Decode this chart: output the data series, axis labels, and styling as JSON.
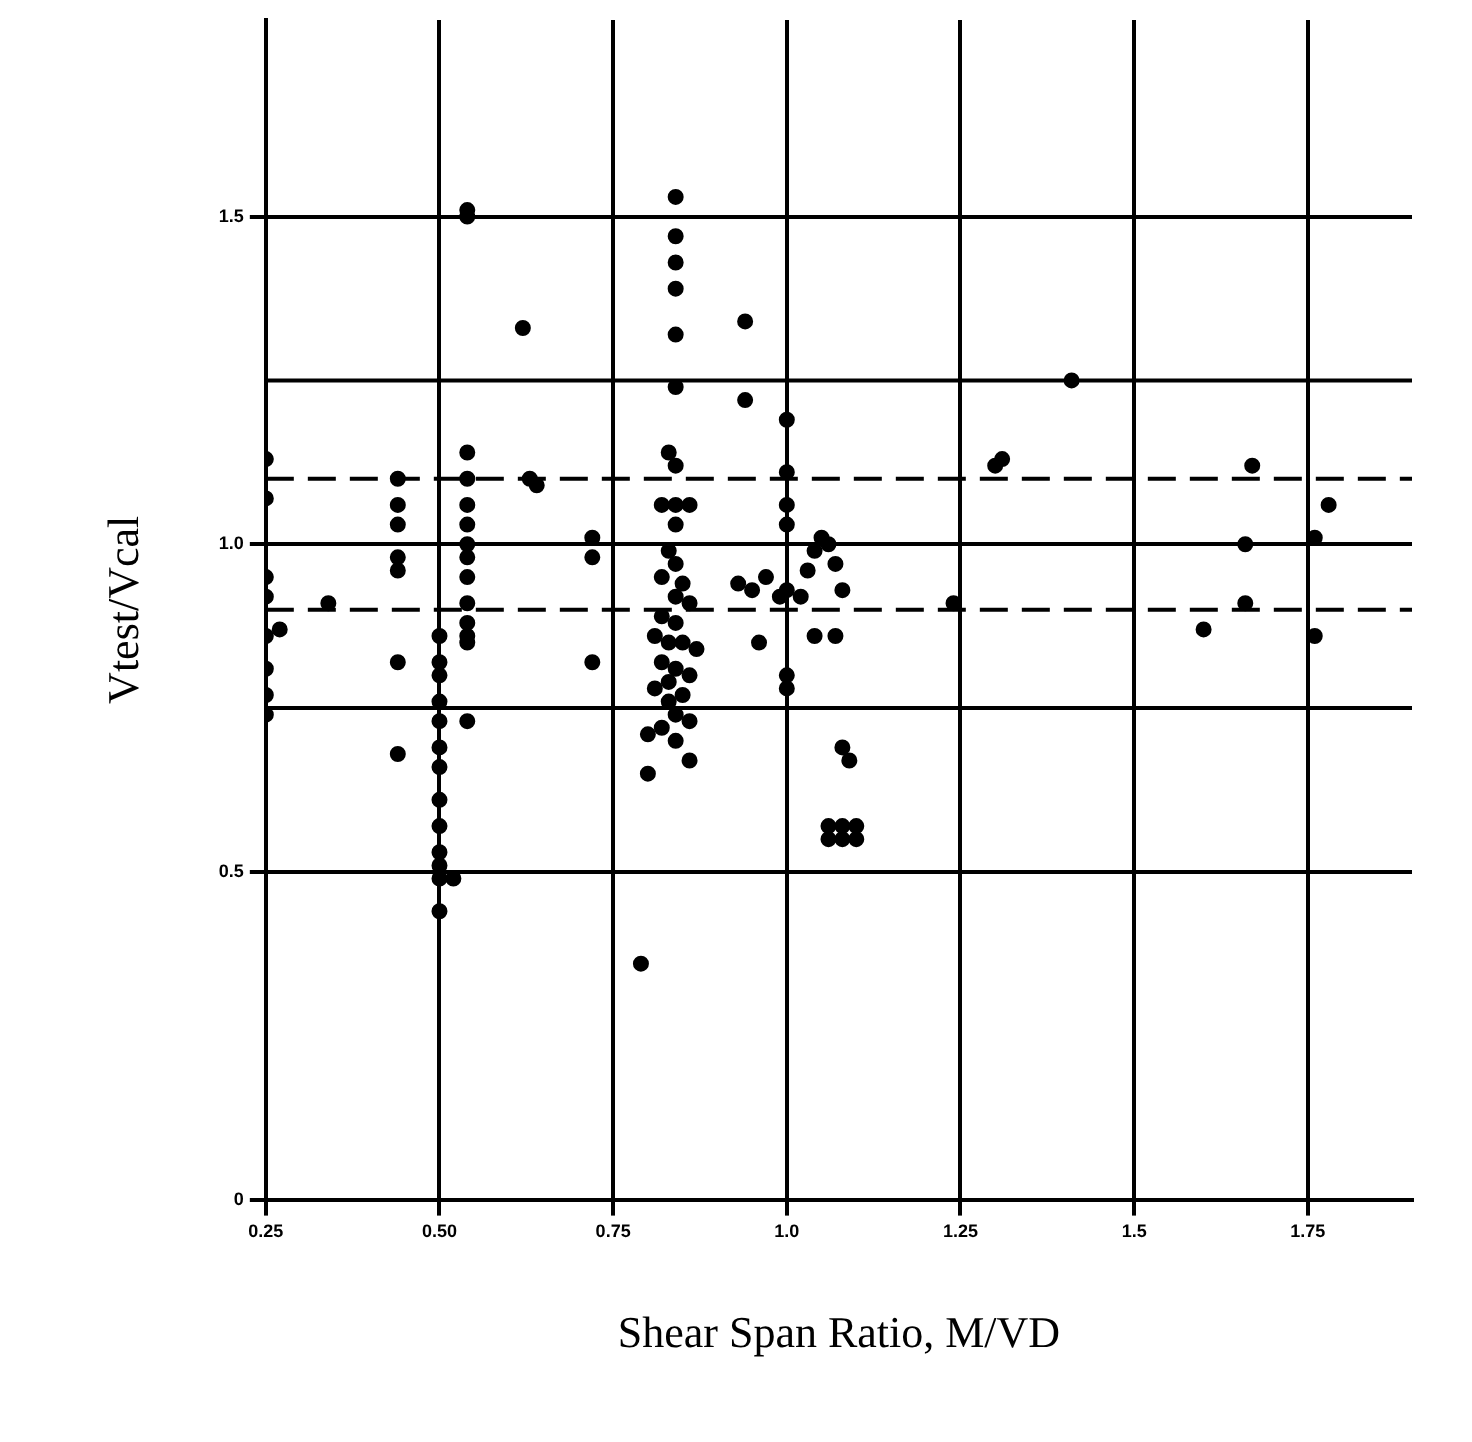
{
  "chart_data": {
    "type": "scatter",
    "xlabel": "Shear Span Ratio, M/VD",
    "ylabel": "Vtest/Vcal",
    "xlim": [
      0.25,
      1.9
    ],
    "xticks": [
      0.25,
      {
        "value": 0.5,
        "label": "0.50"
      },
      0.75,
      {
        "value": 1,
        "label": "1.0"
      },
      1.25,
      1.5,
      1.75
    ],
    "ylim": [
      0,
      1.8
    ],
    "yticks": [
      0,
      0.5,
      {
        "value": 1,
        "label": "1.0"
      },
      1.5
    ],
    "grid": true,
    "marker": "circle",
    "ref_lines": [
      {
        "axis": "y",
        "value": 1.25,
        "line_style": "solid"
      },
      {
        "axis": "y",
        "value": 1.1,
        "line_style": "dashed"
      },
      {
        "axis": "y",
        "value": 0.9,
        "line_style": "dashed"
      },
      {
        "axis": "y",
        "value": 0.75,
        "line_style": "solid"
      }
    ],
    "series": [
      {
        "color": "#000000",
        "x": [
          0.25,
          0.25,
          0.25,
          0.25,
          0.25,
          0.25,
          0.25,
          0.25,
          0.27,
          0.34,
          0.44,
          0.44,
          0.44,
          0.44,
          0.44,
          0.44,
          0.44,
          0.5,
          0.5,
          0.5,
          0.5,
          0.5,
          0.5,
          0.5,
          0.5,
          0.5,
          0.5,
          0.5,
          0.5,
          0.5,
          0.52,
          0.54,
          0.54,
          0.54,
          0.54,
          0.54,
          0.54,
          0.54,
          0.54,
          0.54,
          0.54,
          0.54,
          0.54,
          0.54,
          0.54,
          0.62,
          0.63,
          0.64,
          0.72,
          0.72,
          0.72,
          0.84,
          0.84,
          0.84,
          0.84,
          0.84,
          0.84,
          0.94,
          0.94,
          0.83,
          0.84,
          0.82,
          0.84,
          0.86,
          0.84,
          0.83,
          0.84,
          0.82,
          0.85,
          0.84,
          0.86,
          0.82,
          0.84,
          0.81,
          0.83,
          0.85,
          0.87,
          0.82,
          0.84,
          0.86,
          0.83,
          0.81,
          0.85,
          0.83,
          0.84,
          0.86,
          0.82,
          0.84,
          0.86,
          0.8,
          0.79,
          0.8,
          1.0,
          1.0,
          1.0,
          1.0,
          1.0,
          1.0,
          1.0,
          0.93,
          0.95,
          0.97,
          0.99,
          1.02,
          1.03,
          1.04,
          1.05,
          1.06,
          1.07,
          1.08,
          1.04,
          1.07,
          0.96,
          1.08,
          1.09,
          1.06,
          1.08,
          1.1,
          1.06,
          1.08,
          1.1,
          1.24,
          1.3,
          1.31,
          1.41,
          1.6,
          1.66,
          1.66,
          1.67,
          1.76,
          1.76,
          1.78
        ],
        "values": [
          1.13,
          1.07,
          0.95,
          0.92,
          0.86,
          0.81,
          0.77,
          0.74,
          0.87,
          0.91,
          1.1,
          1.06,
          1.03,
          0.98,
          0.96,
          0.82,
          0.68,
          0.86,
          0.82,
          0.8,
          0.76,
          0.73,
          0.69,
          0.66,
          0.61,
          0.57,
          0.53,
          0.51,
          0.49,
          0.44,
          0.49,
          1.51,
          1.5,
          1.14,
          1.1,
          1.06,
          1.03,
          1.0,
          0.98,
          0.95,
          0.91,
          0.88,
          0.86,
          0.85,
          0.73,
          1.33,
          1.1,
          1.09,
          1.01,
          0.98,
          0.82,
          1.53,
          1.47,
          1.43,
          1.39,
          1.32,
          1.24,
          1.34,
          1.22,
          1.14,
          1.12,
          1.06,
          1.06,
          1.06,
          1.03,
          0.99,
          0.97,
          0.95,
          0.94,
          0.92,
          0.91,
          0.89,
          0.88,
          0.86,
          0.85,
          0.85,
          0.84,
          0.82,
          0.81,
          0.8,
          0.79,
          0.78,
          0.77,
          0.76,
          0.74,
          0.73,
          0.72,
          0.7,
          0.67,
          0.71,
          0.36,
          0.65,
          1.19,
          1.11,
          1.06,
          1.03,
          0.93,
          0.8,
          0.78,
          0.94,
          0.93,
          0.95,
          0.92,
          0.92,
          0.96,
          0.99,
          1.01,
          1.0,
          0.97,
          0.93,
          0.86,
          0.86,
          0.85,
          0.69,
          0.67,
          0.57,
          0.57,
          0.57,
          0.55,
          0.55,
          0.55,
          0.91,
          1.12,
          1.13,
          1.25,
          0.87,
          0.91,
          1.0,
          1.12,
          0.86,
          1.01,
          1.06
        ]
      }
    ]
  }
}
